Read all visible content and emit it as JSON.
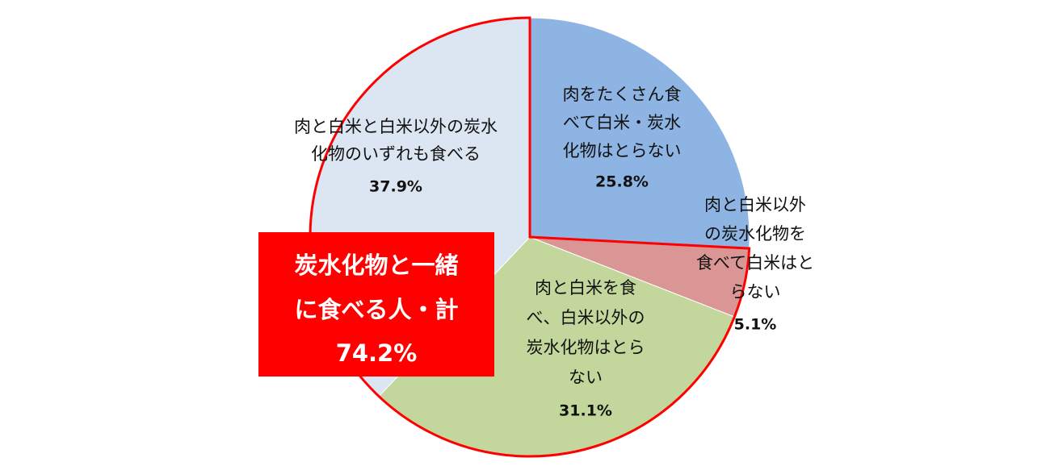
{
  "chart_data": {
    "type": "pie",
    "categories": [
      "肉をたくさん食\nべて白米・炭水\n化物はとらない",
      "肉と白米以外\nの炭水化物を\n食べて白米はと\nらない",
      "肉と白米を食\nべ、白米以外の\n炭水化物はとら\nない",
      "肉と白米と白米以外の炭水\n化物のいずれも食べる"
    ],
    "values": [
      25.8,
      5.1,
      31.1,
      37.9
    ],
    "value_labels": [
      "25.8%",
      "5.1%",
      "31.1%",
      "37.9%"
    ],
    "colors": [
      "#8eb4e3",
      "#d99694",
      "#c3d69b",
      "#dce6f2"
    ],
    "outline_color": "#ff0000",
    "annotation": {
      "lines": [
        "炭水化物と一緒",
        "に食べる人・計"
      ],
      "total": 74.2,
      "total_label": "74.2%",
      "color": "#ff0000"
    }
  }
}
